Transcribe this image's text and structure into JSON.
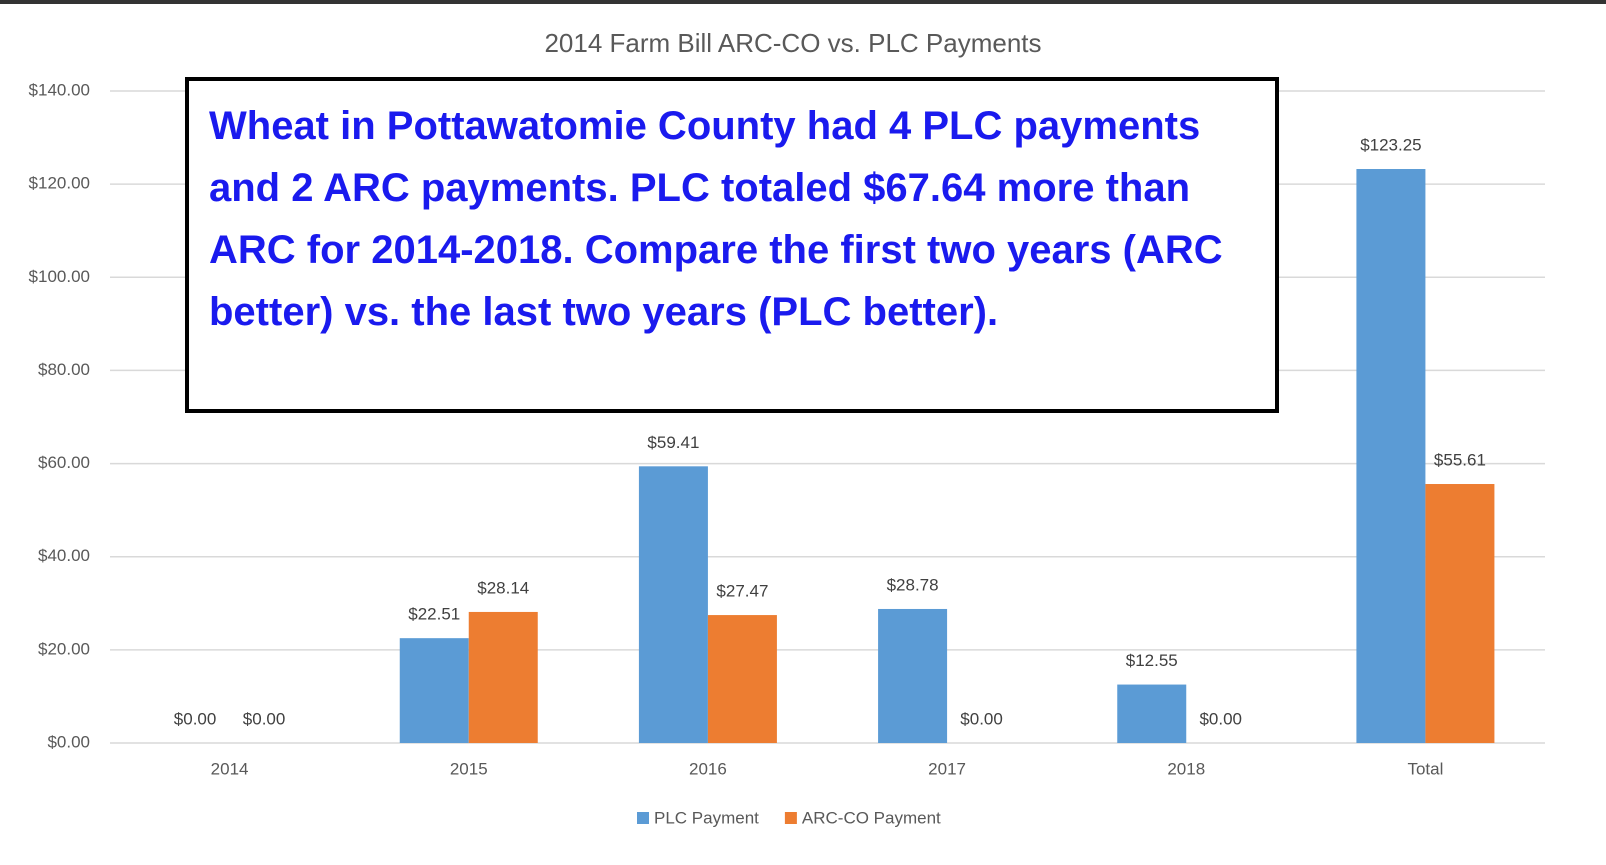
{
  "chart_data": {
    "type": "bar",
    "title": "2014 Farm Bill ARC-CO vs. PLC Payments",
    "annotation": "Wheat in Pottawatomie County had 4 PLC payments and 2 ARC payments. PLC totaled $67.64 more than ARC for 2014-2018. Compare the first two years (ARC better) vs. the last two years (PLC better).",
    "categories": [
      "2014",
      "2015",
      "2016",
      "2017",
      "2018",
      "Total"
    ],
    "series": [
      {
        "name": "PLC Payment",
        "color": "#5b9bd5",
        "values": [
          0,
          22.51,
          59.41,
          28.78,
          12.55,
          123.25
        ],
        "value_labels": [
          "$0.00",
          "$22.51",
          "$59.41",
          "$28.78",
          "$12.55",
          "$123.25"
        ]
      },
      {
        "name": "ARC-CO Payment",
        "color": "#ed7d31",
        "values": [
          0,
          28.14,
          27.47,
          0,
          0,
          55.61
        ],
        "value_labels": [
          "$0.00",
          "$28.14",
          "$27.47",
          "$0.00",
          "$0.00",
          "$55.61"
        ]
      }
    ],
    "ylim": [
      0,
      140
    ],
    "yticks": [
      {
        "value": 0,
        "label": "$0.00"
      },
      {
        "value": 20,
        "label": "$20.00"
      },
      {
        "value": 40,
        "label": "$40.00"
      },
      {
        "value": 60,
        "label": "$60.00"
      },
      {
        "value": 80,
        "label": "$80.00"
      },
      {
        "value": 100,
        "label": "$100.00"
      },
      {
        "value": 120,
        "label": "$120.00"
      },
      {
        "value": 140,
        "label": "$140.00"
      }
    ],
    "grid": true,
    "legend": "bottom"
  }
}
